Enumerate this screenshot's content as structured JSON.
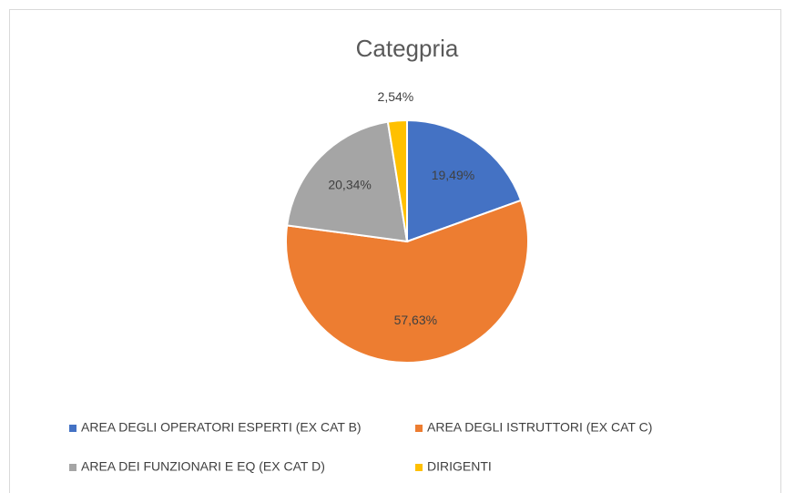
{
  "chart_data": {
    "type": "pie",
    "title": "Categpria",
    "categories": [
      "AREA DEGLI OPERATORI ESPERTI (EX CAT B)",
      "AREA DEGLI ISTRUTTORI (EX CAT C)",
      "AREA DEI FUNZIONARI E EQ (EX CAT D)",
      "DIRIGENTI"
    ],
    "values": [
      19.49,
      57.63,
      20.34,
      2.54
    ],
    "value_labels": [
      "19,49%",
      "57,63%",
      "20,34%",
      "2,54%"
    ],
    "colors": [
      "#4472c4",
      "#ed7d31",
      "#a5a5a5",
      "#ffc000"
    ],
    "legend": "bottom"
  }
}
